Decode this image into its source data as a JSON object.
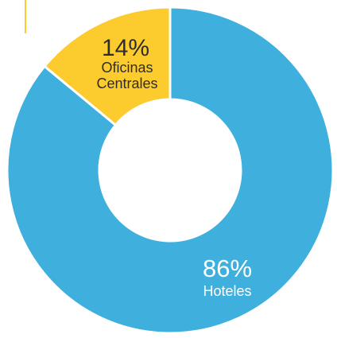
{
  "chart_data": {
    "type": "pie",
    "donut": true,
    "title": "",
    "slices": [
      {
        "label": "Hoteles",
        "value": 86,
        "display": "86%",
        "color": "#3FB0DE",
        "text_color": "#FFFFFF"
      },
      {
        "label": "Oficinas Centrales",
        "label_lines": [
          "Oficinas",
          "Centrales"
        ],
        "value": 14,
        "display": "14%",
        "color": "#FCCB2E",
        "text_color": "#2D2D2D"
      }
    ],
    "legend": "none",
    "accent_color": "#FCCB2E"
  }
}
